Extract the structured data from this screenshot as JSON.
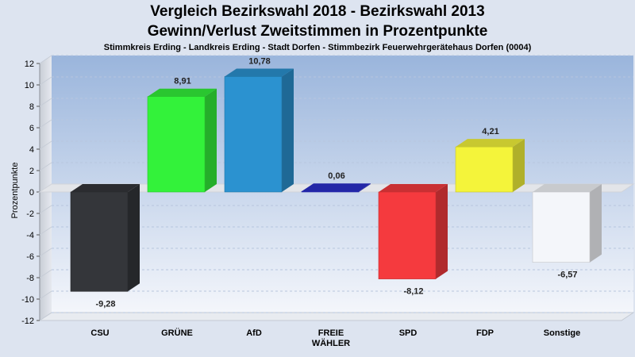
{
  "chart_data": {
    "type": "bar",
    "title": "Vergleich Bezirkswahl 2018 - Bezirkswahl 2013",
    "title2": "Gewinn/Verlust Zweitstimmen in Prozentpunkte",
    "subtitle": "Stimmkreis Erding - Landkreis Erding - Stadt Dorfen - Stimmbezirk Feuerwehrgerätehaus Dorfen (0004)",
    "ylabel": "Prozentpunkte",
    "xlabel": "",
    "ylim": [
      -12,
      12
    ],
    "yticks": [
      "12",
      "10",
      "8",
      "6",
      "4",
      "2",
      "0",
      "-2",
      "-4",
      "-6",
      "-8",
      "-10",
      "-12"
    ],
    "categories": [
      [
        "CSU"
      ],
      [
        "GRÜNE"
      ],
      [
        "AfD"
      ],
      [
        "FREIE",
        "WÄHLER"
      ],
      [
        "SPD"
      ],
      [
        "FDP"
      ],
      [
        "Sonstige"
      ]
    ],
    "values": [
      -9.28,
      8.91,
      10.78,
      0.06,
      -8.12,
      4.21,
      -6.57
    ],
    "labels": [
      "-9,28",
      "8,91",
      "10,78",
      "0,06",
      "-8,12",
      "4,21",
      "-6,57"
    ],
    "colors": [
      "#34363a",
      "#33f23a",
      "#2b92d0",
      "#2b2fcc",
      "#f53a3e",
      "#f4f43a",
      "#f4f6fa"
    ],
    "grid": true,
    "legend": "none"
  }
}
